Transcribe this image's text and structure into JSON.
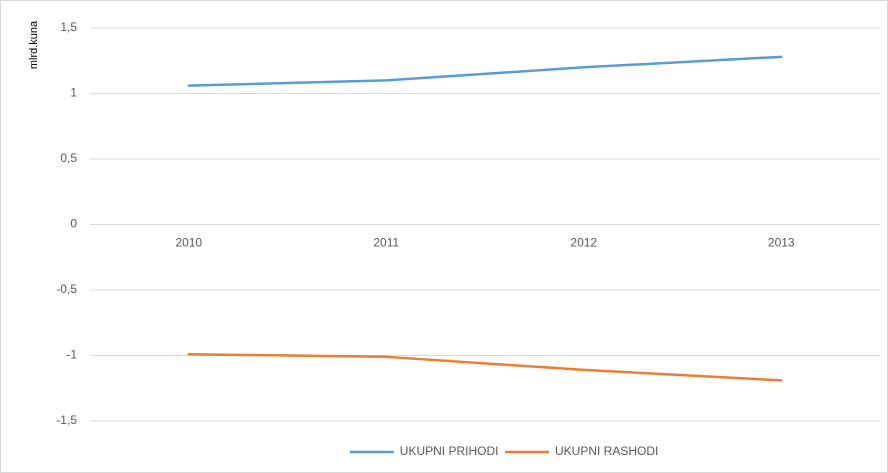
{
  "chart_data": {
    "type": "line",
    "y_axis_label": "mlrd.kuna",
    "categories": [
      "2010",
      "2011",
      "2012",
      "2013"
    ],
    "series": [
      {
        "name": "UKUPNI PRIHODI",
        "color": "#5b9bd5",
        "values": [
          1.06,
          1.1,
          1.2,
          1.28
        ]
      },
      {
        "name": "UKUPNI RASHODI",
        "color": "#ed7d31",
        "values": [
          -0.99,
          -1.01,
          -1.11,
          -1.19
        ]
      }
    ],
    "ylim": [
      -1.5,
      1.5
    ],
    "yticks": [
      {
        "value": 1.5,
        "label": "1,5"
      },
      1,
      {
        "value": 0.5,
        "label": "0,5"
      },
      0,
      {
        "value": -0.5,
        "label": "-0,5"
      },
      -1,
      {
        "value": -1.5,
        "label": "-1,5"
      }
    ],
    "grid": true,
    "legend": "bottom"
  }
}
